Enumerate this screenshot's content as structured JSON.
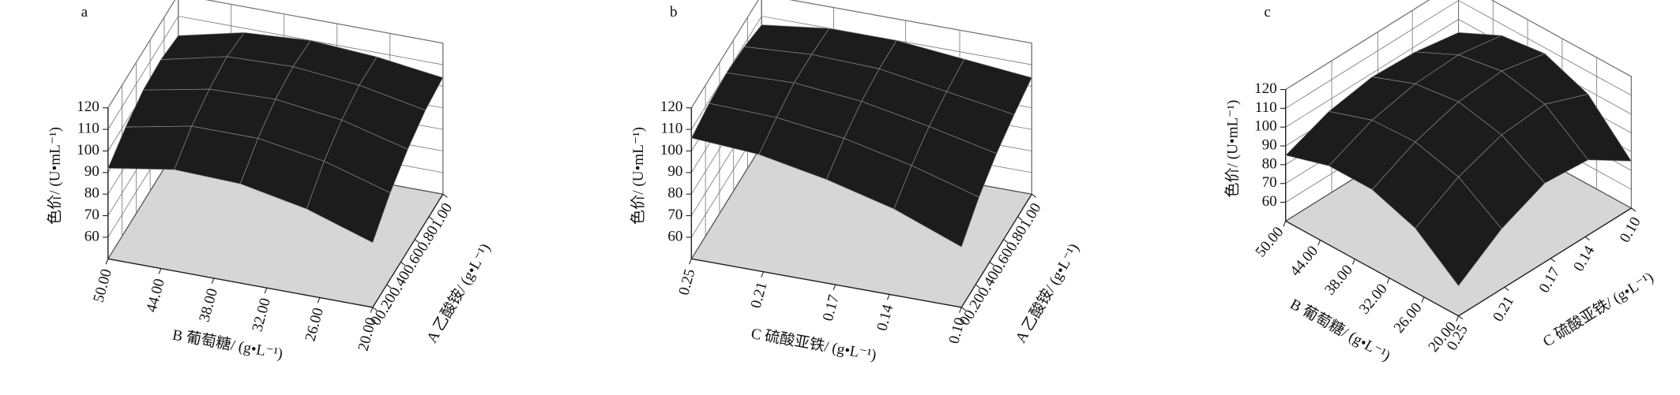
{
  "chart_data": [
    {
      "type": "surface",
      "title": "a",
      "xlabel": "B 葡萄糖/ (g•L⁻¹)",
      "ylabel": "A 乙酸铵/ (g•L⁻¹)",
      "zlabel": "色价/ (U•mL⁻¹)",
      "x": [
        50,
        42.5,
        35,
        27.5,
        20
      ],
      "y": [
        0,
        0.25,
        0.5,
        0.75,
        1
      ],
      "z": [
        [
          92,
          97,
          96,
          90,
          80
        ],
        [
          98,
          104,
          104,
          99,
          90
        ],
        [
          102,
          108,
          109,
          105,
          97
        ],
        [
          103,
          110,
          111,
          108,
          102
        ],
        [
          101,
          108,
          110,
          108,
          104
        ]
      ],
      "xlim": [
        50,
        20
      ],
      "ylim": [
        0,
        1
      ],
      "zlim": [
        50,
        120
      ],
      "xticks": [
        {
          "value": 50,
          "label": "50.00"
        },
        {
          "value": 44,
          "label": "44.00"
        },
        {
          "value": 38,
          "label": "38.00"
        },
        {
          "value": 32,
          "label": "32.00"
        },
        {
          "value": 26,
          "label": "26.00"
        },
        {
          "value": 20,
          "label": "20.00"
        }
      ],
      "yticks": [
        0,
        {
          "value": 0.2,
          "label": "0.20"
        },
        {
          "value": 0.4,
          "label": "0.40"
        },
        {
          "value": 0.6,
          "label": "0.60"
        },
        {
          "value": 0.8,
          "label": "0.80"
        },
        {
          "value": 1,
          "label": "1.00"
        }
      ],
      "zticks": [
        60,
        70,
        80,
        90,
        100,
        110,
        120
      ],
      "color": "#1c1c1c",
      "floor_color": "#d6d6d6"
    },
    {
      "type": "surface",
      "title": "b",
      "xlabel": "C 硫酸亚铁/ (g•L⁻¹)",
      "ylabel": "A 乙酸铵/ (g•L⁻¹)",
      "zlabel": "色价/ (U•mL⁻¹)",
      "x": [
        0.25,
        0.2125,
        0.175,
        0.1375,
        0.1
      ],
      "y": [
        0,
        0.25,
        0.5,
        0.75,
        1
      ],
      "z": [
        [
          106,
          104,
          98,
          90,
          78
        ],
        [
          109,
          108,
          104,
          97,
          88
        ],
        [
          110,
          111,
          108,
          102,
          95
        ],
        [
          109,
          111,
          110,
          105,
          100
        ],
        [
          106,
          110,
          110,
          107,
          104
        ]
      ],
      "xlim": [
        0.25,
        0.1
      ],
      "ylim": [
        0,
        1
      ],
      "zlim": [
        50,
        120
      ],
      "xticks": [
        0.25,
        0.21,
        0.17,
        0.14,
        {
          "value": 0.1,
          "label": "0.10"
        }
      ],
      "yticks": [
        0,
        {
          "value": 0.2,
          "label": "0.20"
        },
        {
          "value": 0.4,
          "label": "0.40"
        },
        {
          "value": 0.6,
          "label": "0.60"
        },
        {
          "value": 0.8,
          "label": "0.80"
        },
        {
          "value": 1,
          "label": "1.00"
        }
      ],
      "zticks": [
        60,
        70,
        80,
        90,
        100,
        110,
        120
      ],
      "color": "#1c1c1c",
      "floor_color": "#d6d6d6"
    },
    {
      "type": "surface",
      "title": "c",
      "xlabel": "B 葡萄糖/ (g•L⁻¹)",
      "ylabel": "C 硫酸亚铁/ (g•L⁻¹)",
      "zlabel": "色价/ (U•mL⁻¹)",
      "x": [
        50,
        42.5,
        35,
        27.5,
        20
      ],
      "y": [
        0.25,
        0.2125,
        0.175,
        0.1375,
        0.1
      ],
      "z": [
        [
          85,
          92,
          92,
          84,
          66
        ],
        [
          94,
          102,
          103,
          97,
          82
        ],
        [
          98,
          107,
          110,
          105,
          92
        ],
        [
          97,
          108,
          112,
          107,
          90
        ],
        [
          93,
          104,
          107,
          98,
          75
        ]
      ],
      "xlim": [
        50,
        20
      ],
      "ylim": [
        0.25,
        0.1
      ],
      "zlim": [
        50,
        120
      ],
      "xticks": [
        {
          "value": 50,
          "label": "50.00"
        },
        {
          "value": 44,
          "label": "44.00"
        },
        {
          "value": 38,
          "label": "38.00"
        },
        {
          "value": 32,
          "label": "32.00"
        },
        {
          "value": 26,
          "label": "26.00"
        },
        {
          "value": 20,
          "label": "20.00"
        }
      ],
      "yticks": [
        0.25,
        0.21,
        0.17,
        0.14,
        {
          "value": 0.1,
          "label": "0.10"
        }
      ],
      "zticks": [
        60,
        70,
        80,
        90,
        100,
        110,
        120
      ],
      "color": "#1c1c1c",
      "floor_color": "#d6d6d6"
    }
  ]
}
